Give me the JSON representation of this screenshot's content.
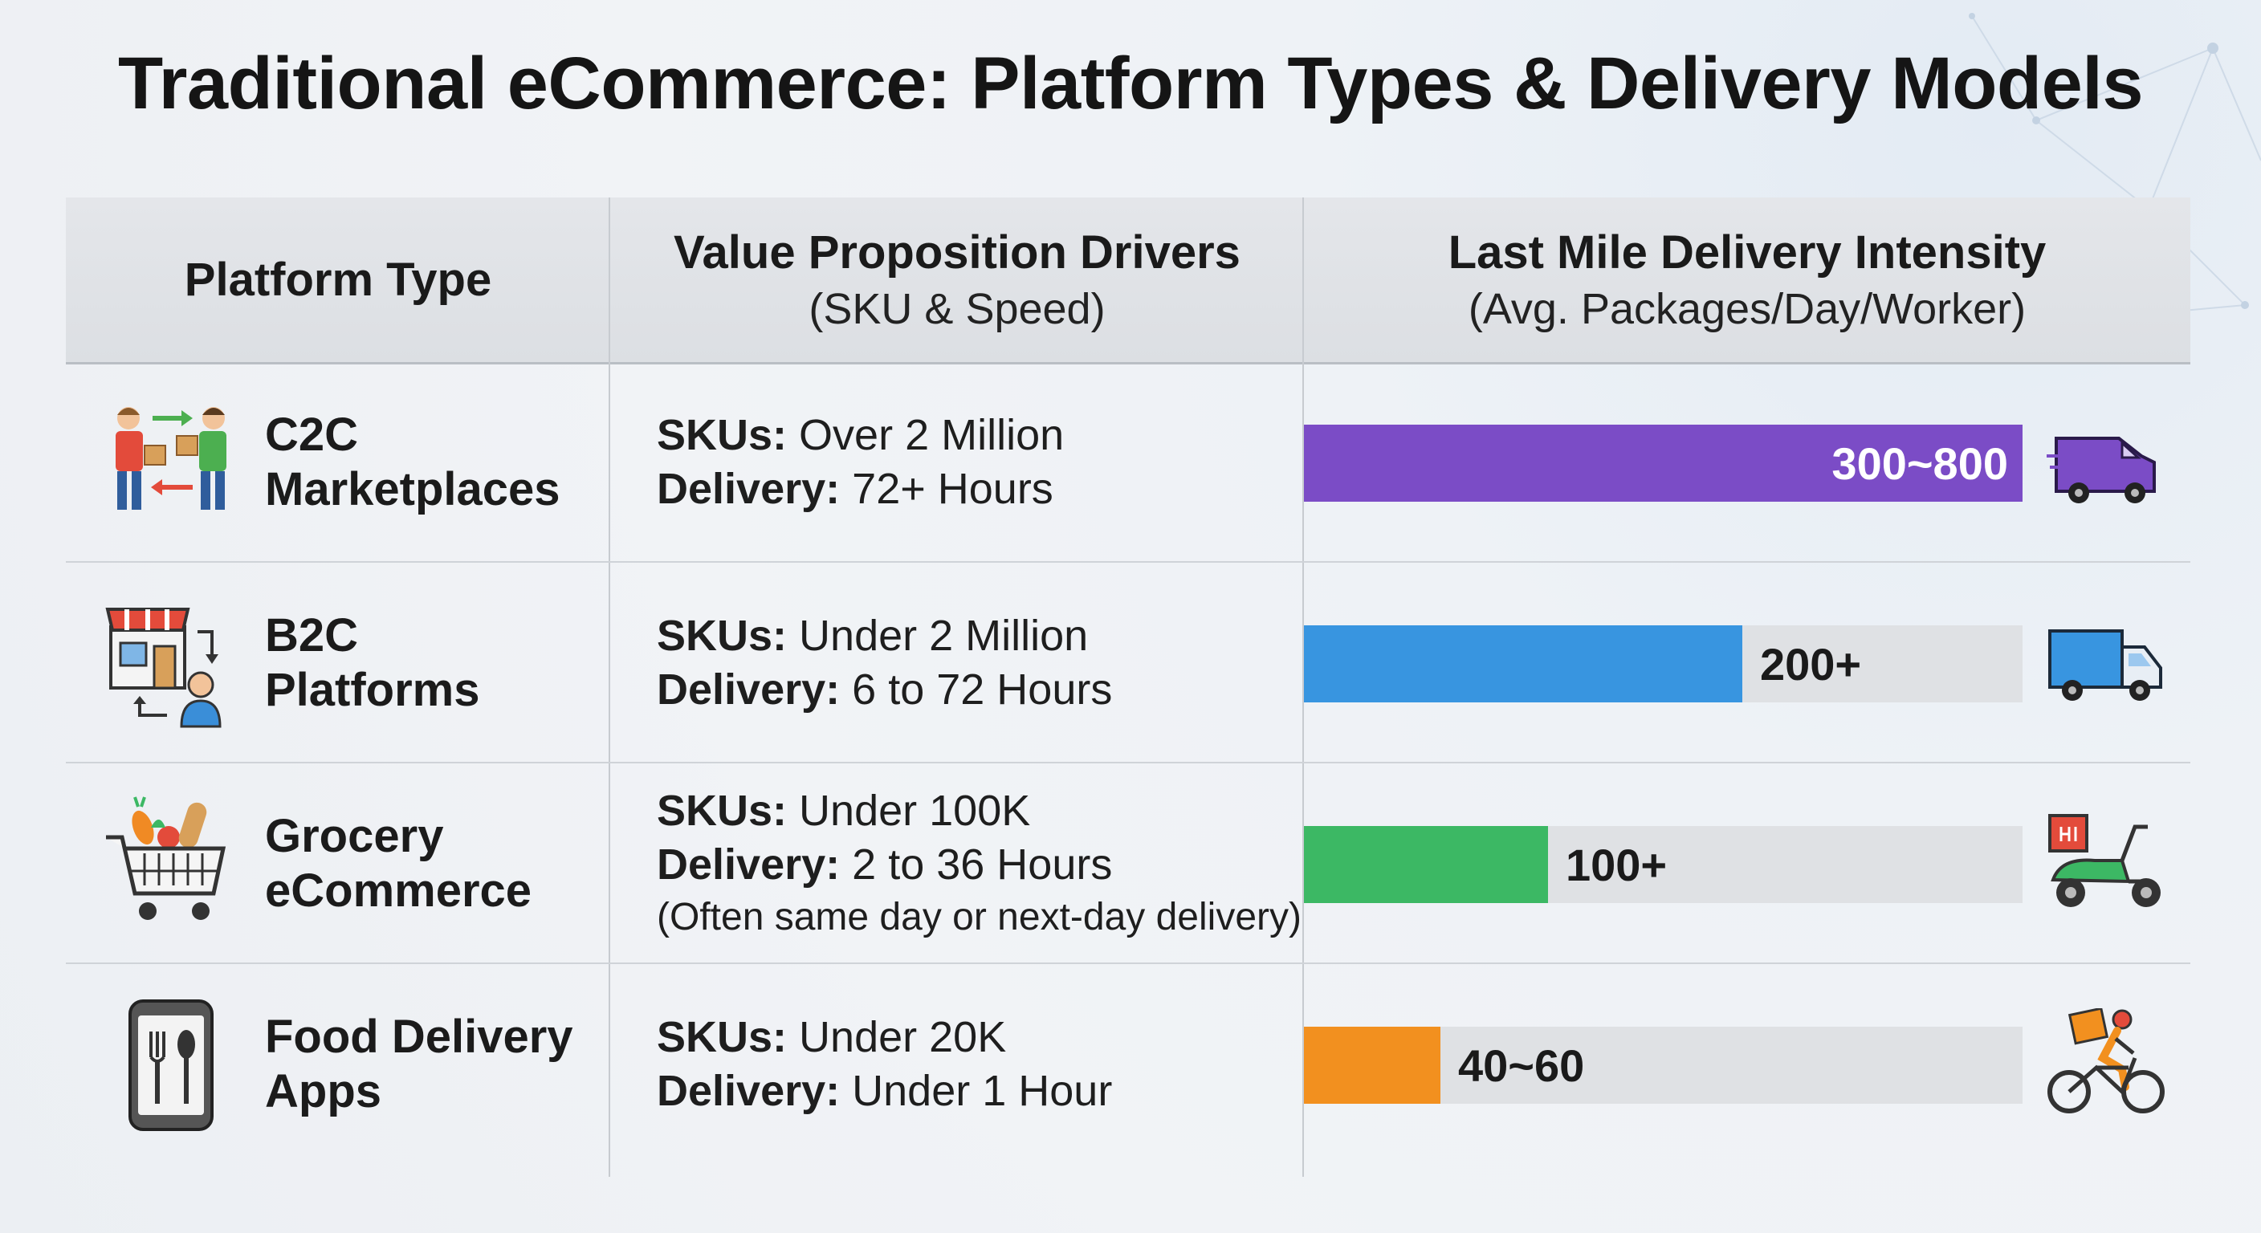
{
  "title": "Traditional eCommerce: Platform Types & Delivery Models",
  "header": {
    "col1": "Platform Type",
    "col2_line1": "Value Proposition Drivers",
    "col2_line2": "(SKU & Speed)",
    "col3_line1": "Last Mile Delivery Intensity",
    "col3_line2": "(Avg. Packages/Day/Worker)"
  },
  "labels": {
    "skus": "SKUs:",
    "delivery": "Delivery:"
  },
  "rows": [
    {
      "name1": "C2C",
      "name2": "Marketplaces",
      "icon": "people-exchange-icon",
      "skus": "Over 2 Million",
      "delivery": "72+ Hours",
      "note": "",
      "bar_label": "300~800",
      "bar_fraction": 1.0,
      "bar_color": "#7b4cc6",
      "vehicle": "van-icon"
    },
    {
      "name1": "B2C",
      "name2": "Platforms",
      "icon": "store-customer-icon",
      "skus": "Under 2 Million",
      "delivery": "6 to 72 Hours",
      "note": "",
      "bar_label": "200+",
      "bar_fraction": 0.61,
      "bar_color": "#3895e0",
      "vehicle": "truck-icon"
    },
    {
      "name1": "Grocery",
      "name2": "eCommerce",
      "icon": "grocery-cart-icon",
      "skus": "Under 100K",
      "delivery": "2 to 36 Hours",
      "note": "(Often same day or next-day delivery)",
      "bar_label": "100+",
      "bar_fraction": 0.34,
      "bar_color": "#3cb864",
      "vehicle": "scooter-icon"
    },
    {
      "name1": "Food Delivery",
      "name2": "Apps",
      "icon": "food-app-phone-icon",
      "skus": "Under 20K",
      "delivery": "Under 1 Hour",
      "note": "",
      "bar_label": "40~60",
      "bar_fraction": 0.19,
      "bar_color": "#f2901f",
      "vehicle": "bicycle-courier-icon"
    }
  ]
}
